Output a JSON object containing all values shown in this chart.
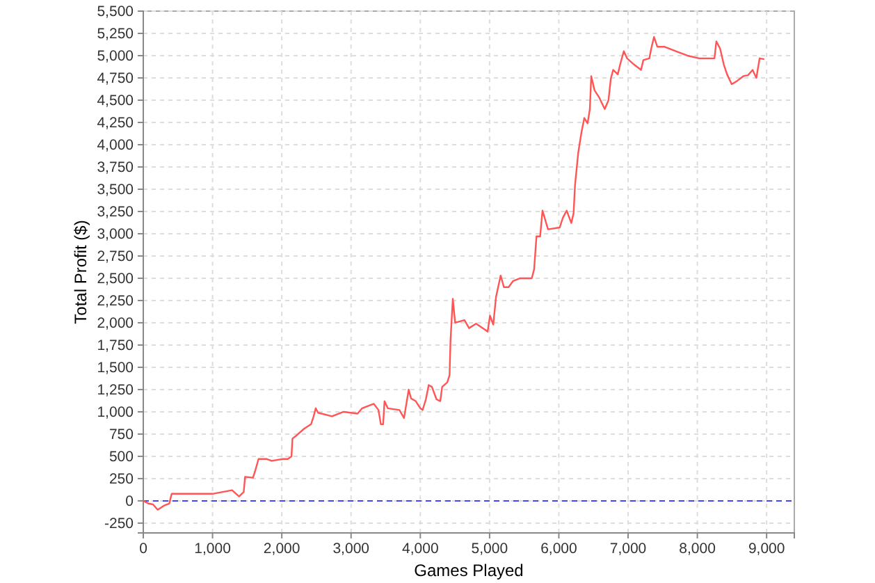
{
  "chart_data": {
    "type": "line",
    "xlabel": "Games Played",
    "ylabel": "Total Profit ($)",
    "xlim": [
      0,
      9400
    ],
    "ylim": [
      -360,
      5500
    ],
    "xticks": [
      0,
      {
        "value": 1000,
        "label": "1,000"
      },
      {
        "value": 2000,
        "label": "2,000"
      },
      {
        "value": 3000,
        "label": "3,000"
      },
      {
        "value": 4000,
        "label": "4,000"
      },
      {
        "value": 5000,
        "label": "5,000"
      },
      {
        "value": 6000,
        "label": "6,000"
      },
      {
        "value": 7000,
        "label": "7,000"
      },
      {
        "value": 8000,
        "label": "8,000"
      },
      {
        "value": 9000,
        "label": "9,000"
      }
    ],
    "yticks": [
      -250,
      0,
      250,
      500,
      750,
      {
        "value": 1000,
        "label": "1,000"
      },
      {
        "value": 1250,
        "label": "1,250"
      },
      {
        "value": 1500,
        "label": "1,500"
      },
      {
        "value": 1750,
        "label": "1,750"
      },
      {
        "value": 2000,
        "label": "2,000"
      },
      {
        "value": 2250,
        "label": "2,250"
      },
      {
        "value": 2500,
        "label": "2,500"
      },
      {
        "value": 2750,
        "label": "2,750"
      },
      {
        "value": 3000,
        "label": "3,000"
      },
      {
        "value": 3250,
        "label": "3,250"
      },
      {
        "value": 3500,
        "label": "3,500"
      },
      {
        "value": 3750,
        "label": "3,750"
      },
      {
        "value": 4000,
        "label": "4,000"
      },
      {
        "value": 4250,
        "label": "4,250"
      },
      {
        "value": 4500,
        "label": "4,500"
      },
      {
        "value": 4750,
        "label": "4,750"
      },
      {
        "value": 5000,
        "label": "5,000"
      },
      {
        "value": 5250,
        "label": "5,250"
      },
      {
        "value": 5500,
        "label": "5,500"
      }
    ],
    "grid": true,
    "marker": "none",
    "line_style": "solid",
    "ref_lines": [
      {
        "axis": "y",
        "value": 0,
        "color": "#4444ff",
        "line_style": "dashed"
      }
    ],
    "series": [
      {
        "color": "#ff5555",
        "x": [
          0,
          75,
          140,
          208,
          308,
          375,
          410,
          476,
          812,
          1012,
          1282,
          1383,
          1450,
          1470,
          1584,
          1617,
          1664,
          1785,
          1853,
          2020,
          2087,
          2140,
          2154,
          2221,
          2322,
          2422,
          2456,
          2490,
          2523,
          2724,
          2892,
          3094,
          3160,
          3328,
          3396,
          3430,
          3463,
          3483,
          3530,
          3698,
          3765,
          3832,
          3866,
          3933,
          4000,
          4033,
          4080,
          4121,
          4167,
          4234,
          4288,
          4315,
          4389,
          4422,
          4436,
          4469,
          4503,
          4637,
          4704,
          4805,
          4939,
          4972,
          5006,
          5053,
          5093,
          5160,
          5207,
          5274,
          5341,
          5442,
          5609,
          5643,
          5677,
          5730,
          5764,
          5844,
          6012,
          6059,
          6113,
          6180,
          6213,
          6233,
          6280,
          6327,
          6368,
          6415,
          6448,
          6468,
          6516,
          6583,
          6663,
          6717,
          6750,
          6784,
          6851,
          6885,
          6938,
          6985,
          7086,
          7187,
          7220,
          7307,
          7334,
          7374,
          7422,
          7522,
          7723,
          7857,
          8026,
          8247,
          8274,
          8328,
          8382,
          8429,
          8496,
          8563,
          8664,
          8731,
          8798,
          8852,
          8899,
          8966
        ],
        "values": [
          0,
          -30,
          -40,
          -100,
          -50,
          -30,
          80,
          80,
          80,
          80,
          120,
          50,
          100,
          270,
          260,
          340,
          470,
          470,
          450,
          470,
          470,
          500,
          700,
          740,
          810,
          860,
          940,
          1040,
          990,
          950,
          1000,
          980,
          1040,
          1090,
          1020,
          860,
          860,
          1120,
          1040,
          1020,
          930,
          1250,
          1150,
          1120,
          1040,
          1020,
          1140,
          1300,
          1280,
          1140,
          1120,
          1280,
          1330,
          1410,
          1800,
          2270,
          2000,
          2030,
          1940,
          1990,
          1920,
          1900,
          2080,
          1980,
          2290,
          2530,
          2400,
          2400,
          2470,
          2500,
          2500,
          2600,
          2970,
          2970,
          3260,
          3050,
          3070,
          3180,
          3260,
          3120,
          3230,
          3540,
          3910,
          4140,
          4300,
          4240,
          4400,
          4770,
          4610,
          4530,
          4400,
          4500,
          4740,
          4840,
          4790,
          4900,
          5050,
          4970,
          4900,
          4840,
          4950,
          4970,
          5080,
          5210,
          5100,
          5100,
          5040,
          5000,
          4970,
          4970,
          5160,
          5080,
          4900,
          4790,
          4680,
          4710,
          4770,
          4780,
          4840,
          4750,
          4970,
          4960
        ]
      }
    ]
  }
}
